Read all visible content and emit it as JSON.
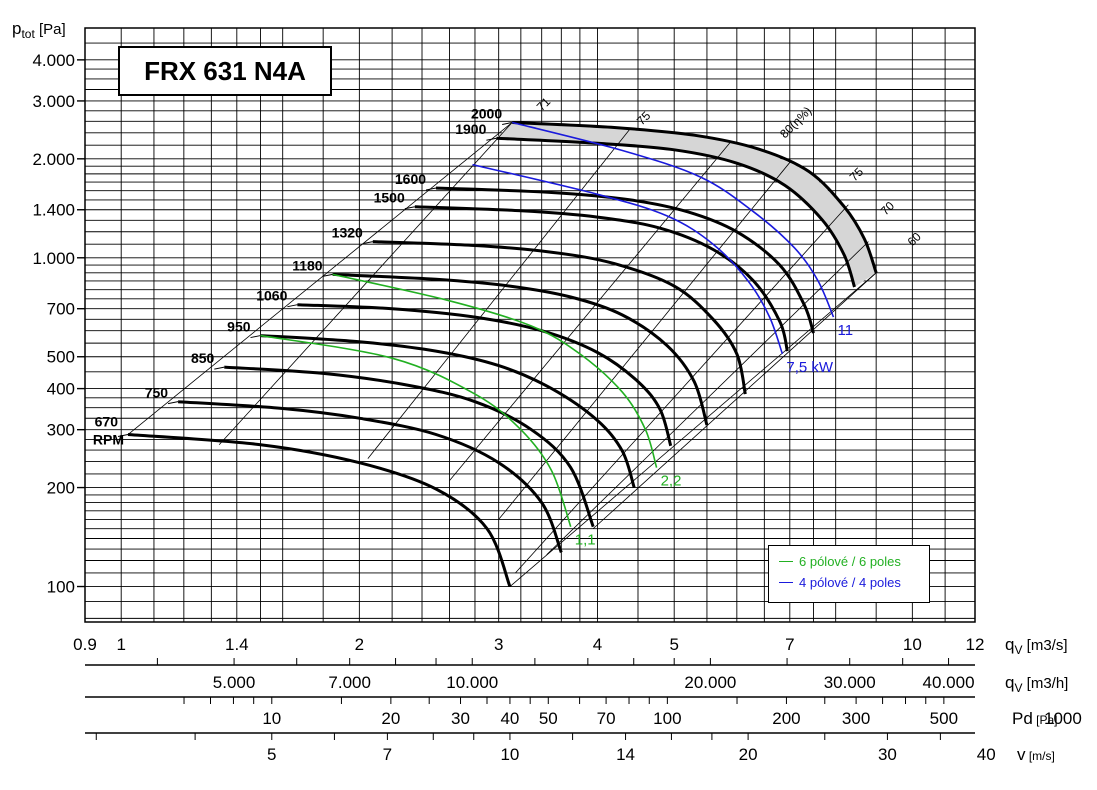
{
  "title": "FRX 631 N4A",
  "chart_data": {
    "type": "line",
    "title": "FRX 631 N4A",
    "ylabel": "ptot [Pa]",
    "ylabel_main": "p",
    "ylabel_sub": "tot",
    "ylabel_unit": "[Pa]",
    "yscale": "log",
    "xscale": "log",
    "ylim": [
      78,
      5000
    ],
    "xlim": [
      0.9,
      12
    ],
    "y_ticks": [
      {
        "value": 100,
        "label": "100"
      },
      {
        "value": 200,
        "label": "200"
      },
      {
        "value": 300,
        "label": "300"
      },
      {
        "value": 400,
        "label": "400"
      },
      {
        "value": 500,
        "label": "500"
      },
      {
        "value": 700,
        "label": "700"
      },
      {
        "value": 1000,
        "label": "1.000"
      },
      {
        "value": 1400,
        "label": "1.400"
      },
      {
        "value": 2000,
        "label": "2.000"
      },
      {
        "value": 3000,
        "label": "3.000"
      },
      {
        "value": 4000,
        "label": "4.000"
      }
    ],
    "x_axes": [
      {
        "label": "qV [m3/s]",
        "main": "q",
        "sub": "V",
        "unit": "[m3/s]",
        "ticks": [
          {
            "value": 0.9,
            "label": "0.9"
          },
          {
            "value": 1,
            "label": "1"
          },
          {
            "value": 1.4,
            "label": "1.4"
          },
          {
            "value": 2,
            "label": "2"
          },
          {
            "value": 3,
            "label": "3"
          },
          {
            "value": 4,
            "label": "4"
          },
          {
            "value": 5,
            "label": "5"
          },
          {
            "value": 7,
            "label": "7"
          },
          {
            "value": 10,
            "label": "10"
          },
          {
            "value": 12,
            "label": "12"
          }
        ]
      },
      {
        "label": "qV [m3/h]",
        "main": "q",
        "sub": "V",
        "unit": "[m3/h]",
        "ticks": [
          {
            "value": 5000,
            "label": "5.000"
          },
          {
            "value": 7000,
            "label": "7.000"
          },
          {
            "value": 10000,
            "label": "10.000"
          },
          {
            "value": 20000,
            "label": "20.000"
          },
          {
            "value": 30000,
            "label": "30.000"
          },
          {
            "value": 40000,
            "label": "40.000"
          }
        ]
      },
      {
        "label": "Pd [Pa]",
        "main": "Pd",
        "sub": "",
        "unit": "[Pa]",
        "ticks": [
          {
            "value": 10,
            "label": "10"
          },
          {
            "value": 20,
            "label": "20"
          },
          {
            "value": 30,
            "label": "30"
          },
          {
            "value": 40,
            "label": "40"
          },
          {
            "value": 50,
            "label": "50"
          },
          {
            "value": 70,
            "label": "70"
          },
          {
            "value": 100,
            "label": "100"
          },
          {
            "value": 200,
            "label": "200"
          },
          {
            "value": 300,
            "label": "300"
          },
          {
            "value": 500,
            "label": "500"
          },
          {
            "value": 1000,
            "label": "1000"
          }
        ]
      },
      {
        "label": "v [m/s]",
        "main": "v",
        "sub": "",
        "unit": "[m/s]",
        "ticks": [
          {
            "value": 5,
            "label": "5"
          },
          {
            "value": 7,
            "label": "7"
          },
          {
            "value": 10,
            "label": "10"
          },
          {
            "value": 14,
            "label": "14"
          },
          {
            "value": 20,
            "label": "20"
          },
          {
            "value": 30,
            "label": "30"
          },
          {
            "value": 40,
            "label": "40"
          }
        ]
      }
    ],
    "speed_curves": [
      {
        "label": "670 RPM",
        "rpm": 670,
        "points": [
          [
            1.02,
            290
          ],
          [
            1.5,
            270
          ],
          [
            2.0,
            238
          ],
          [
            2.5,
            198
          ],
          [
            2.9,
            150
          ],
          [
            3.1,
            100
          ]
        ]
      },
      {
        "label": "750",
        "rpm": 750,
        "points": [
          [
            1.18,
            365
          ],
          [
            1.6,
            348
          ],
          [
            2.0,
            325
          ],
          [
            2.5,
            290
          ],
          [
            3.0,
            238
          ],
          [
            3.4,
            180
          ],
          [
            3.6,
            127
          ]
        ]
      },
      {
        "label": "850",
        "rpm": 850,
        "points": [
          [
            1.35,
            465
          ],
          [
            1.8,
            445
          ],
          [
            2.3,
            410
          ],
          [
            2.8,
            365
          ],
          [
            3.3,
            300
          ],
          [
            3.7,
            230
          ],
          [
            3.95,
            152
          ]
        ]
      },
      {
        "label": "950",
        "rpm": 950,
        "points": [
          [
            1.5,
            580
          ],
          [
            2.0,
            555
          ],
          [
            2.5,
            520
          ],
          [
            3.0,
            470
          ],
          [
            3.5,
            400
          ],
          [
            4.0,
            320
          ],
          [
            4.3,
            258
          ],
          [
            4.45,
            200
          ]
        ]
      },
      {
        "label": "1060",
        "rpm": 1060,
        "points": [
          [
            1.67,
            720
          ],
          [
            2.2,
            700
          ],
          [
            2.8,
            660
          ],
          [
            3.4,
            600
          ],
          [
            4.0,
            515
          ],
          [
            4.5,
            420
          ],
          [
            4.8,
            345
          ],
          [
            4.95,
            268
          ]
        ]
      },
      {
        "label": "1180",
        "rpm": 1180,
        "points": [
          [
            1.85,
            890
          ],
          [
            2.5,
            860
          ],
          [
            3.1,
            820
          ],
          [
            3.7,
            760
          ],
          [
            4.3,
            670
          ],
          [
            4.9,
            540
          ],
          [
            5.3,
            420
          ],
          [
            5.5,
            310
          ]
        ]
      },
      {
        "label": "1320",
        "rpm": 1320,
        "points": [
          [
            2.08,
            1120
          ],
          [
            2.8,
            1090
          ],
          [
            3.5,
            1040
          ],
          [
            4.2,
            960
          ],
          [
            5.0,
            820
          ],
          [
            5.6,
            650
          ],
          [
            6.0,
            510
          ],
          [
            6.15,
            385
          ]
        ]
      },
      {
        "label": "1500",
        "rpm": 1500,
        "points": [
          [
            2.35,
            1430
          ],
          [
            3.2,
            1390
          ],
          [
            4.0,
            1330
          ],
          [
            4.8,
            1230
          ],
          [
            5.6,
            1060
          ],
          [
            6.3,
            850
          ],
          [
            6.8,
            640
          ],
          [
            6.95,
            520
          ]
        ]
      },
      {
        "label": "1600",
        "rpm": 1600,
        "points": [
          [
            2.5,
            1630
          ],
          [
            3.5,
            1580
          ],
          [
            4.4,
            1500
          ],
          [
            5.2,
            1380
          ],
          [
            6.0,
            1200
          ],
          [
            6.8,
            950
          ],
          [
            7.3,
            720
          ],
          [
            7.5,
            590
          ]
        ]
      },
      {
        "label": "1900",
        "rpm": 1900,
        "points": [
          [
            2.98,
            2310
          ],
          [
            4.0,
            2230
          ],
          [
            5.0,
            2130
          ],
          [
            6.0,
            1940
          ],
          [
            6.9,
            1660
          ],
          [
            7.7,
            1300
          ],
          [
            8.2,
            1020
          ],
          [
            8.45,
            815
          ]
        ]
      },
      {
        "label": "2000",
        "rpm": 2000,
        "points": [
          [
            3.12,
            2580
          ],
          [
            4.2,
            2490
          ],
          [
            5.3,
            2360
          ],
          [
            6.4,
            2140
          ],
          [
            7.4,
            1830
          ],
          [
            8.2,
            1430
          ],
          [
            8.7,
            1140
          ],
          [
            9.0,
            900
          ]
        ]
      }
    ],
    "power_curves": [
      {
        "label": "1,1",
        "poles": 6,
        "points": [
          [
            1.5,
            580
          ],
          [
            2.2,
            495
          ],
          [
            2.8,
            385
          ],
          [
            3.2,
            300
          ],
          [
            3.5,
            225
          ],
          [
            3.7,
            152
          ]
        ]
      },
      {
        "label": "2,2",
        "poles": 6,
        "points": [
          [
            1.85,
            890
          ],
          [
            2.6,
            740
          ],
          [
            3.3,
            620
          ],
          [
            3.8,
            510
          ],
          [
            4.3,
            390
          ],
          [
            4.6,
            300
          ],
          [
            4.75,
            230
          ]
        ]
      },
      {
        "label": "7,5 kW",
        "poles": 4,
        "points": [
          [
            2.78,
            1920
          ],
          [
            4.0,
            1560
          ],
          [
            4.9,
            1340
          ],
          [
            5.6,
            1100
          ],
          [
            6.2,
            850
          ],
          [
            6.6,
            660
          ],
          [
            6.85,
            510
          ]
        ]
      },
      {
        "label": "11",
        "poles": 4,
        "points": [
          [
            3.12,
            2580
          ],
          [
            4.3,
            2120
          ],
          [
            5.4,
            1760
          ],
          [
            6.3,
            1380
          ],
          [
            7.1,
            1070
          ],
          [
            7.6,
            850
          ],
          [
            7.95,
            660
          ]
        ]
      }
    ],
    "efficiency_labels": [
      "71",
      "75",
      "80(η%)",
      "75",
      "70",
      "60"
    ],
    "legend": [
      {
        "label": "6 pólové / 6 poles",
        "color": "#22b022"
      },
      {
        "label": "4 pólové / 4 poles",
        "color": "#1a1adc"
      }
    ],
    "legend_position": "bottom-right",
    "grid": true,
    "shaded_region": "4-pole operating range (between 1900 and 2000 RPM curves)"
  },
  "colors": {
    "six_pole": "#22b022",
    "four_pole": "#1a1adc",
    "curve": "#000000",
    "shade": "#d6d6d6"
  }
}
